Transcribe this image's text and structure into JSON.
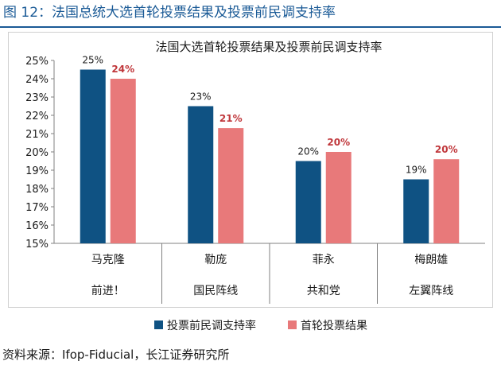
{
  "figure_title": "图 12：法国总统大选首轮投票结果及投票前民调支持率",
  "source_note": "资料来源：Ifop-Fiducial，长江证券研究所",
  "colors": {
    "poll": "#0f5283",
    "result": "#e8797a",
    "accent": "#1a5a96",
    "result_label": "#c0373b"
  },
  "chart_data": {
    "type": "bar",
    "title": "法国大选首轮投票结果及投票前民调支持率",
    "categories": [
      {
        "name": "马克隆",
        "party": "前进！"
      },
      {
        "name": "勒庞",
        "party": "国民阵线"
      },
      {
        "name": "菲永",
        "party": "共和党"
      },
      {
        "name": "梅朗雄",
        "party": "左翼阵线"
      }
    ],
    "series": [
      {
        "name": "投票前民调支持率",
        "values": [
          24.5,
          22.5,
          19.5,
          18.5
        ],
        "labels": [
          "25%",
          "23%",
          "20%",
          "19%"
        ]
      },
      {
        "name": "首轮投票结果",
        "values": [
          24.0,
          21.3,
          20.0,
          19.6
        ],
        "labels": [
          "24%",
          "21%",
          "20%",
          "20%"
        ]
      }
    ],
    "y_ticks": [
      "15%",
      "16%",
      "17%",
      "18%",
      "19%",
      "20%",
      "21%",
      "22%",
      "23%",
      "24%",
      "25%"
    ],
    "ylim": [
      15,
      25
    ],
    "legend_position": "bottom"
  }
}
